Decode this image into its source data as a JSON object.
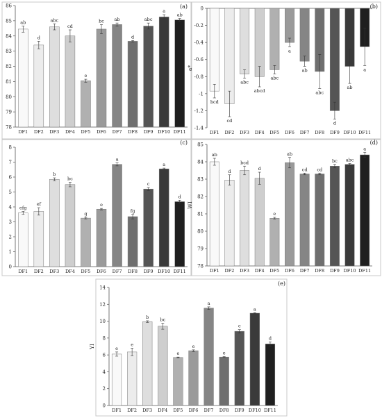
{
  "chart_data": [
    {
      "type": "bar",
      "panel_label": "(a)",
      "ylabel": "L*",
      "ylim": [
        78,
        86
      ],
      "yticks": [
        78,
        79,
        80,
        81,
        82,
        83,
        84,
        85,
        86
      ],
      "categories": [
        "DF1",
        "DF2",
        "DF3",
        "DF4",
        "DF5",
        "DF6",
        "DF7",
        "DF8",
        "DF9",
        "DF10",
        "DF11"
      ],
      "values": [
        84.45,
        83.4,
        84.6,
        84.0,
        81.05,
        84.45,
        84.75,
        83.65,
        84.65,
        85.25,
        85.05
      ],
      "errors": [
        0.2,
        0.25,
        0.2,
        0.4,
        0.1,
        0.3,
        0.1,
        0.05,
        0.2,
        0.15,
        0.1
      ],
      "labels": [
        "ab",
        "d",
        "abc",
        "cd",
        "e",
        "bc",
        "ab",
        "d",
        "abc",
        "a",
        "ab"
      ],
      "colors": [
        "#f9f9f9",
        "#ececec",
        "#dedede",
        "#cecece",
        "#b0b0b0",
        "#9a9a9a",
        "#858585",
        "#6f6f6f",
        "#555555",
        "#3a3a3a",
        "#1f1f1f"
      ]
    },
    {
      "type": "bar",
      "panel_label": "(b)",
      "ylabel": "a*",
      "ylim": [
        -1.4,
        0
      ],
      "yticks": [
        0,
        -0.2,
        -0.4,
        -0.6,
        -0.8,
        -1,
        -1.2,
        -1.4
      ],
      "categories": [
        "DF1",
        "DF2",
        "DF3",
        "DF4",
        "DF5",
        "DF6",
        "DF7",
        "DF8",
        "DF9",
        "DF10",
        "DF11"
      ],
      "values": [
        -0.97,
        -1.12,
        -0.77,
        -0.8,
        -0.72,
        -0.4,
        -0.62,
        -0.74,
        -1.2,
        -0.68,
        -0.45
      ],
      "errors": [
        0.08,
        0.15,
        0.05,
        0.12,
        0.05,
        0.05,
        0.06,
        0.2,
        0.1,
        0.2,
        0.22
      ],
      "labels": [
        "bcd",
        "cd",
        "abc",
        "abcd",
        "abc",
        "a",
        "ab",
        "abc",
        "d",
        "ab",
        "a"
      ],
      "colors": [
        "#f9f9f9",
        "#ececec",
        "#dedede",
        "#cecece",
        "#b0b0b0",
        "#9a9a9a",
        "#858585",
        "#6f6f6f",
        "#555555",
        "#3a3a3a",
        "#1f1f1f"
      ]
    },
    {
      "type": "bar",
      "panel_label": "(c)",
      "ylabel": "b*",
      "ylim": [
        0,
        8
      ],
      "yticks": [
        0,
        1,
        2,
        3,
        4,
        5,
        6,
        7,
        8
      ],
      "categories": [
        "DF1",
        "DF2",
        "DF3",
        "DF4",
        "DF5",
        "DF6",
        "DF7",
        "DF8",
        "DF9",
        "DF10",
        "DF11"
      ],
      "values": [
        3.6,
        3.7,
        5.85,
        5.5,
        3.25,
        3.85,
        6.85,
        3.35,
        5.2,
        6.55,
        4.35
      ],
      "errors": [
        0.1,
        0.25,
        0.1,
        0.15,
        0.05,
        0.05,
        0.1,
        0.15,
        0.1,
        0.05,
        0.1
      ],
      "labels": [
        "efg",
        "ef",
        "b",
        "bc",
        "g",
        "e",
        "a",
        "fg",
        "c",
        "a",
        "d"
      ],
      "colors": [
        "#f9f9f9",
        "#ececec",
        "#dedede",
        "#cecece",
        "#b0b0b0",
        "#9a9a9a",
        "#858585",
        "#6f6f6f",
        "#555555",
        "#3a3a3a",
        "#1f1f1f"
      ]
    },
    {
      "type": "bar",
      "panel_label": "(d)",
      "ylabel": "WI",
      "ylim": [
        78,
        85
      ],
      "yticks": [
        78,
        79,
        80,
        81,
        82,
        83,
        84,
        85
      ],
      "categories": [
        "DF1",
        "DF2",
        "DF3",
        "DF4",
        "DF5",
        "DF6",
        "DF7",
        "DF8",
        "DF9",
        "DF10",
        "DF11"
      ],
      "values": [
        84.0,
        82.95,
        83.5,
        83.05,
        80.75,
        83.95,
        83.3,
        83.3,
        83.75,
        83.85,
        84.4
      ],
      "errors": [
        0.2,
        0.3,
        0.25,
        0.35,
        0.05,
        0.3,
        0.05,
        0.05,
        0.1,
        0.05,
        0.15
      ],
      "labels": [
        "ab",
        "d",
        "bcd",
        "d",
        "e",
        "ab",
        "cd",
        "cd",
        "bc",
        "abc",
        "a"
      ],
      "colors": [
        "#f9f9f9",
        "#ececec",
        "#dedede",
        "#cecece",
        "#b0b0b0",
        "#9a9a9a",
        "#858585",
        "#6f6f6f",
        "#555555",
        "#3a3a3a",
        "#1f1f1f"
      ]
    },
    {
      "type": "bar",
      "panel_label": "(e)",
      "ylabel": "YI",
      "ylim": [
        0,
        14
      ],
      "yticks": [
        0,
        2,
        4,
        6,
        8,
        10,
        12,
        14
      ],
      "categories": [
        "DF1",
        "DF2",
        "DF3",
        "DF4",
        "DF5",
        "DF6",
        "DF7",
        "DF8",
        "DF9",
        "DF10",
        "DF11"
      ],
      "values": [
        6.1,
        6.35,
        9.95,
        9.4,
        5.7,
        6.5,
        11.55,
        5.75,
        8.8,
        10.95,
        7.3
      ],
      "errors": [
        0.25,
        0.45,
        0.1,
        0.35,
        0.05,
        0.1,
        0.15,
        0.05,
        0.2,
        0.05,
        0.25
      ],
      "labels": [
        "e",
        "e",
        "b",
        "bc",
        "e",
        "e",
        "a",
        "e",
        "c",
        "a",
        "d"
      ],
      "colors": [
        "#f9f9f9",
        "#ececec",
        "#dedede",
        "#cecece",
        "#b0b0b0",
        "#9a9a9a",
        "#858585",
        "#6f6f6f",
        "#555555",
        "#3a3a3a",
        "#1f1f1f"
      ]
    }
  ]
}
